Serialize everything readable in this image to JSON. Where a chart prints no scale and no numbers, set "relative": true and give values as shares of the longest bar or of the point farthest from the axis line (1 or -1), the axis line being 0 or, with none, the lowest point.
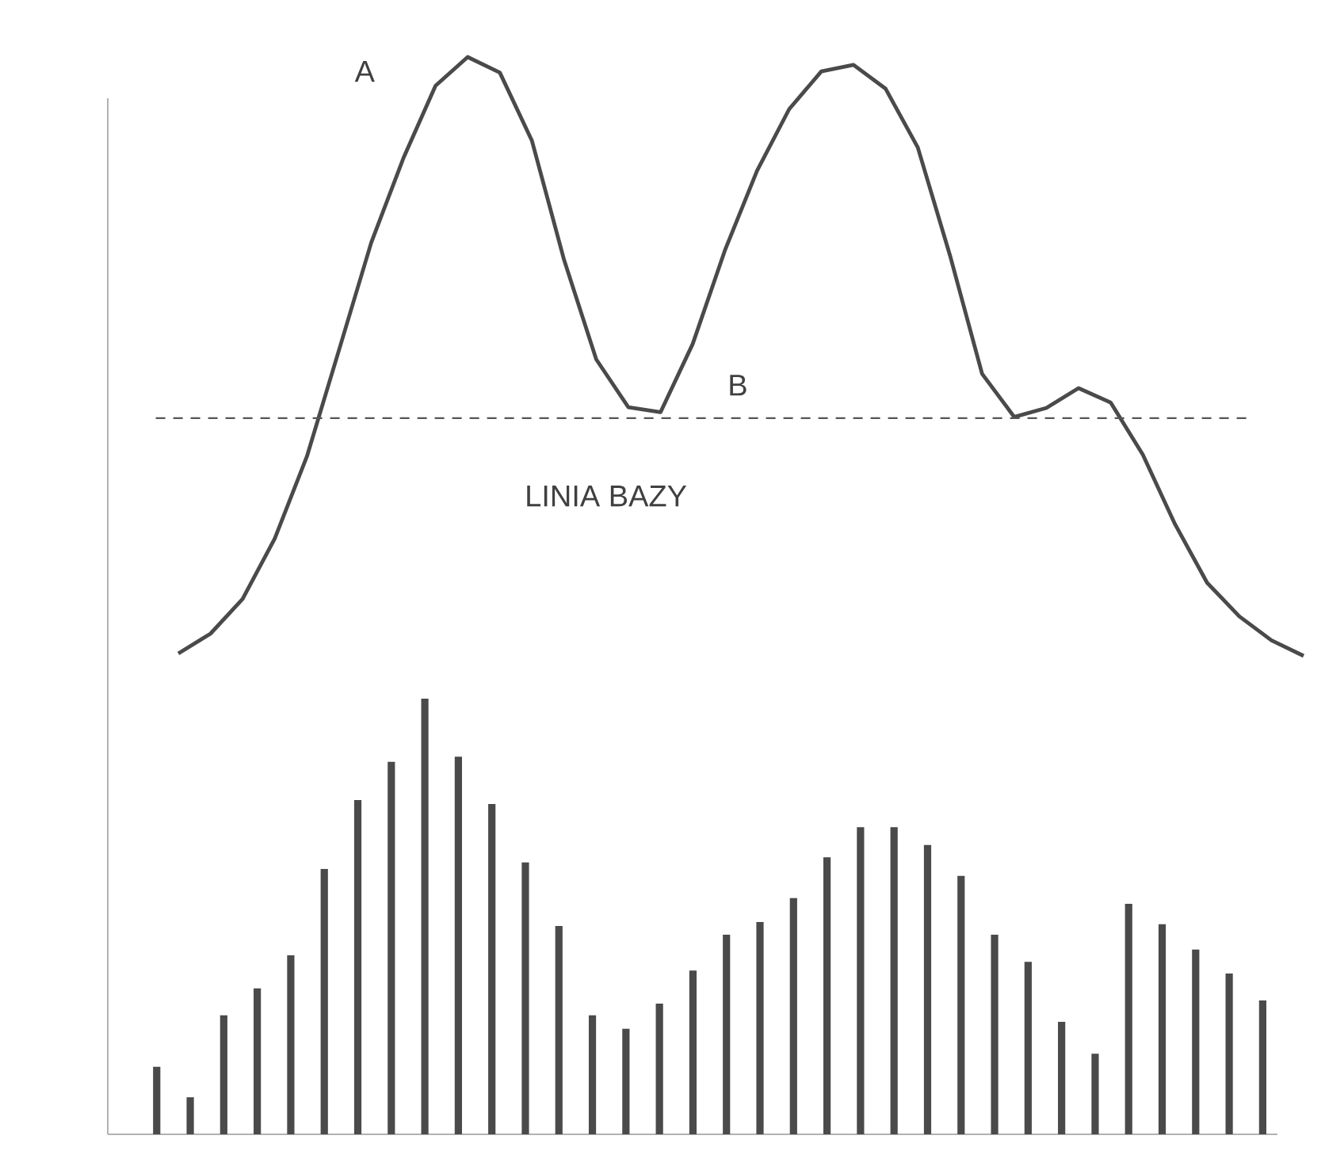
{
  "chart_data": [
    {
      "type": "line",
      "relative": true,
      "color": "#4a4a4a",
      "categories": [
        null,
        null,
        null,
        null,
        null,
        null,
        null,
        null,
        null,
        null,
        null,
        null,
        null,
        null,
        null,
        null,
        null,
        null,
        null,
        null,
        null,
        null,
        null,
        null,
        null,
        null,
        null,
        null,
        null,
        null,
        null,
        null,
        null,
        null,
        null,
        null
      ],
      "values": [
        0.004,
        0.037,
        0.095,
        0.196,
        0.333,
        0.511,
        0.69,
        0.831,
        0.952,
        1,
        0.974,
        0.86,
        0.661,
        0.495,
        0.415,
        0.407,
        0.521,
        0.677,
        0.81,
        0.913,
        0.976,
        0.987,
        0.947,
        0.849,
        0.669,
        0.471,
        0.399,
        0.414,
        0.447,
        0.423,
        0.336,
        0.22,
        0.122,
        0.066,
        0.026,
        0
      ],
      "ref_lines": [
        {
          "axis": "y",
          "value": 0.397,
          "label": "LINIA BAZY",
          "color": "#555555",
          "line_style": "dashed"
        }
      ],
      "annotations": [
        "A",
        "B"
      ]
    },
    {
      "type": "bar",
      "relative": true,
      "color": "#4a4a4a",
      "categories": [
        null,
        null,
        null,
        null,
        null,
        null,
        null,
        null,
        null,
        null,
        null,
        null,
        null,
        null,
        null,
        null,
        null,
        null,
        null,
        null,
        null,
        null,
        null,
        null,
        null,
        null,
        null,
        null,
        null,
        null,
        null,
        null,
        null,
        null
      ],
      "values": [
        0.155,
        0.085,
        0.273,
        0.335,
        0.411,
        0.609,
        0.767,
        0.855,
        1,
        0.867,
        0.758,
        0.624,
        0.478,
        0.273,
        0.242,
        0.3,
        0.376,
        0.458,
        0.487,
        0.542,
        0.636,
        0.705,
        0.705,
        0.664,
        0.593,
        0.458,
        0.396,
        0.258,
        0.185,
        0.529,
        0.482,
        0.424,
        0.369,
        0.307
      ]
    }
  ]
}
